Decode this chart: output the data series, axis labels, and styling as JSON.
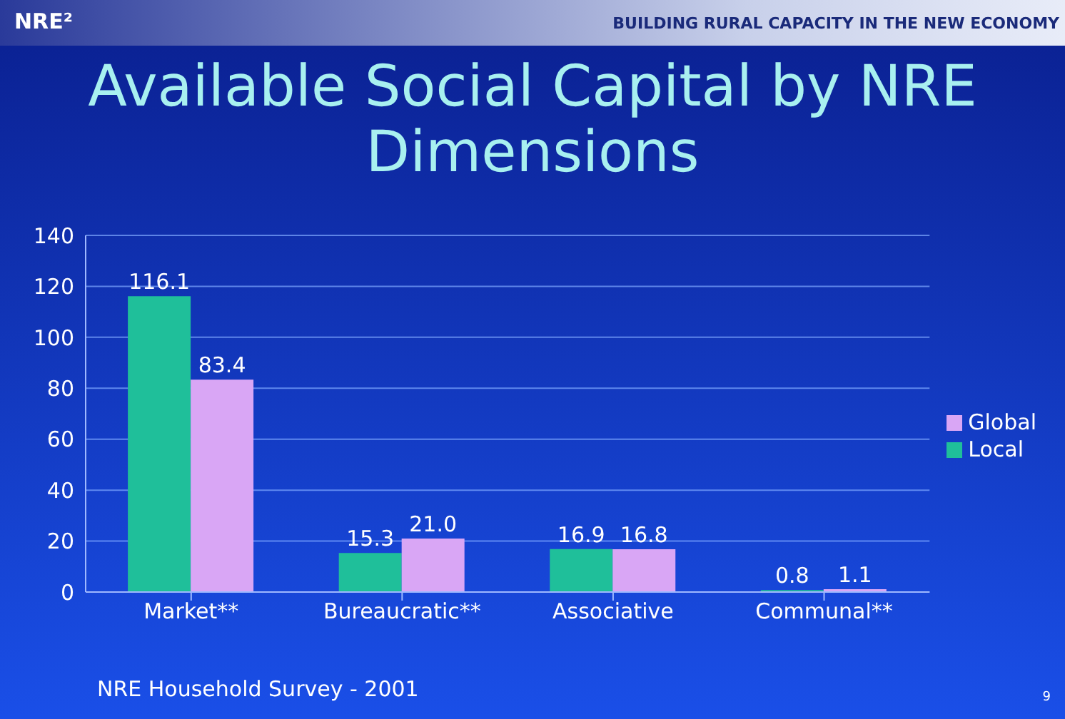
{
  "chart_data": {
    "type": "bar",
    "title": "Available Social Capital by NRE Dimensions",
    "categories": [
      "Market**",
      "Bureaucratic**",
      "Associative",
      "Communal**"
    ],
    "series": [
      {
        "name": "Local",
        "color": "#1fbf9a",
        "values": [
          116.1,
          15.3,
          16.9,
          0.8
        ],
        "value_labels": [
          "116.1",
          "15.3",
          "16.9",
          "0.8"
        ]
      },
      {
        "name": "Global",
        "color": "#d9a6f5",
        "values": [
          83.4,
          21.0,
          16.8,
          1.1
        ],
        "value_labels": [
          "83.4",
          "21.0",
          "16.8",
          "1.1"
        ]
      }
    ],
    "ylim": [
      0,
      140
    ],
    "yticks": [
      0,
      20,
      40,
      60,
      80,
      100,
      120,
      140
    ],
    "grid": "y",
    "legend": "right",
    "annotations": [
      "NRE²",
      "BUILDING RURAL CAPACITY IN THE NEW ECONOMY",
      "NRE Household Survey - 2001",
      "9"
    ]
  }
}
